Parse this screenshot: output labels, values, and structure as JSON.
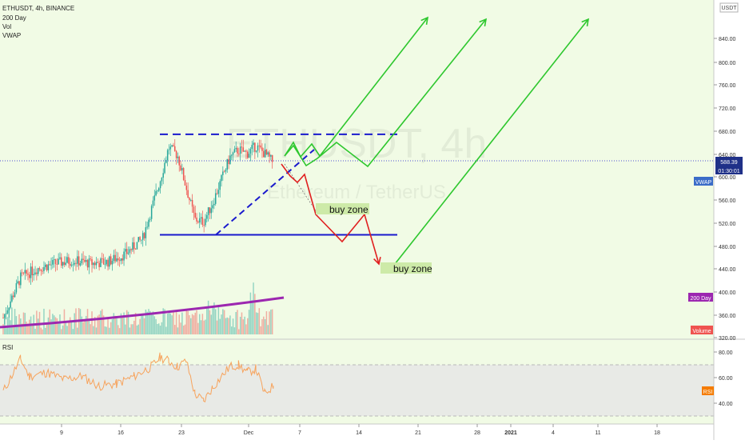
{
  "header": {
    "symbol_line": "ETHUSDT, 4h, BINANCE",
    "indicators": [
      "200 Day",
      "Vol",
      "VWAP"
    ]
  },
  "watermark": {
    "symbol": "ETHUSDT, 4h",
    "description": "Ethereum / TetherUS"
  },
  "price_axis": {
    "currency": "USDT",
    "ticks": [
      "840.00",
      "800.00",
      "760.00",
      "720.00",
      "680.00",
      "640.00",
      "600.00",
      "560.00",
      "520.00",
      "480.00",
      "440.00",
      "400.00",
      "360.00",
      "320.00"
    ]
  },
  "rsi_panel": {
    "label": "RSI",
    "ticks": [
      "80.00",
      "60.00",
      "40.00"
    ],
    "tag": "RSI",
    "band_upper": 70,
    "band_lower": 30
  },
  "badges": {
    "price": "588.39",
    "countdown": "01:30:01",
    "vwap": "VWAP",
    "ma200": "200 Day",
    "volume": "Volume"
  },
  "time_axis": {
    "labels": [
      "9",
      "16",
      "23",
      "Dec",
      "7",
      "14",
      "21",
      "28",
      "2021",
      "4",
      "11",
      "18"
    ]
  },
  "annotations": {
    "buy_zone_1": "buy zone",
    "buy_zone_2": "buy zone"
  },
  "colors": {
    "background": "#f1fbe5",
    "bull_candle": "#26a69a",
    "bear_candle": "#ef5350",
    "rsi_line": "#f7a35c",
    "ma200": "#9c27b0",
    "resistance": "#1a1acd",
    "bullish_path": "#2ec72e",
    "bearish_path": "#e02020",
    "price_badge": "#1f3088",
    "vwap_badge": "#3b6cc8",
    "rsi_badge": "#f57c00",
    "volume_badge": "#ef5350"
  },
  "chart_data": {
    "type": "candlestick",
    "symbol": "ETHUSDT",
    "interval": "4h",
    "exchange": "BINANCE",
    "last_price": 588.39,
    "price_range": [
      300,
      860
    ],
    "levels": {
      "resistance": 625,
      "support": 495
    },
    "price_path": [
      {
        "date": "Nov 4",
        "price": 388
      },
      {
        "date": "Nov 6",
        "price": 440
      },
      {
        "date": "Nov 8",
        "price": 452
      },
      {
        "date": "Nov 10",
        "price": 458
      },
      {
        "date": "Nov 12",
        "price": 462
      },
      {
        "date": "Nov 14",
        "price": 458
      },
      {
        "date": "Nov 16",
        "price": 460
      },
      {
        "date": "Nov 18",
        "price": 470
      },
      {
        "date": "Nov 20",
        "price": 490
      },
      {
        "date": "Nov 22",
        "price": 565
      },
      {
        "date": "Nov 23",
        "price": 608
      },
      {
        "date": "Nov 24",
        "price": 598
      },
      {
        "date": "Nov 26",
        "price": 515
      },
      {
        "date": "Nov 27",
        "price": 512
      },
      {
        "date": "Nov 28",
        "price": 535
      },
      {
        "date": "Nov 30",
        "price": 595
      },
      {
        "date": "Dec 1",
        "price": 605
      },
      {
        "date": "Dec 2",
        "price": 600
      },
      {
        "date": "Dec 3",
        "price": 610
      },
      {
        "date": "Dec 4",
        "price": 600
      },
      {
        "date": "Dec 5",
        "price": 588.39
      }
    ],
    "rsi_path": [
      {
        "date": "Nov 4",
        "rsi": 42
      },
      {
        "date": "Nov 6",
        "rsi": 76
      },
      {
        "date": "Nov 7",
        "rsi": 58
      },
      {
        "date": "Nov 9",
        "rsi": 62
      },
      {
        "date": "Nov 11",
        "rsi": 55
      },
      {
        "date": "Nov 13",
        "rsi": 58
      },
      {
        "date": "Nov 15",
        "rsi": 48
      },
      {
        "date": "Nov 17",
        "rsi": 50
      },
      {
        "date": "Nov 19",
        "rsi": 58
      },
      {
        "date": "Nov 21",
        "rsi": 68
      },
      {
        "date": "Nov 22",
        "rsi": 78
      },
      {
        "date": "Nov 23",
        "rsi": 74
      },
      {
        "date": "Nov 24",
        "rsi": 68
      },
      {
        "date": "Nov 25",
        "rsi": 74
      },
      {
        "date": "Nov 26",
        "rsi": 40
      },
      {
        "date": "Nov 27",
        "rsi": 32
      },
      {
        "date": "Nov 28",
        "rsi": 46
      },
      {
        "date": "Nov 30",
        "rsi": 68
      },
      {
        "date": "Dec 1",
        "rsi": 70
      },
      {
        "date": "Dec 2",
        "rsi": 62
      },
      {
        "date": "Dec 3",
        "rsi": 66
      },
      {
        "date": "Dec 4",
        "rsi": 40
      },
      {
        "date": "Dec 5",
        "rsi": 48
      }
    ],
    "projections": [
      {
        "kind": "bullish",
        "points": [
          [
            "Dec 5",
            600
          ],
          [
            "Dec 6",
            615
          ],
          [
            "Dec 7",
            600
          ],
          [
            "Dec 8",
            610
          ],
          [
            "Dec 12",
            840
          ]
        ]
      },
      {
        "kind": "bullish",
        "points": [
          [
            "Dec 5",
            600
          ],
          [
            "Dec 6",
            610
          ],
          [
            "Dec 9",
            600
          ],
          [
            "Dec 11",
            625
          ],
          [
            "Dec 12",
            590
          ],
          [
            "Dec 21",
            840
          ]
        ]
      },
      {
        "kind": "bearish",
        "points": [
          [
            "Dec 5",
            590
          ],
          [
            "Dec 6",
            565
          ],
          [
            "Dec 7",
            495
          ],
          [
            "Dec 9",
            455
          ],
          [
            "Dec 11",
            495
          ],
          [
            "Dec 14",
            410
          ],
          [
            "Dec 28",
            840
          ]
        ]
      }
    ]
  }
}
